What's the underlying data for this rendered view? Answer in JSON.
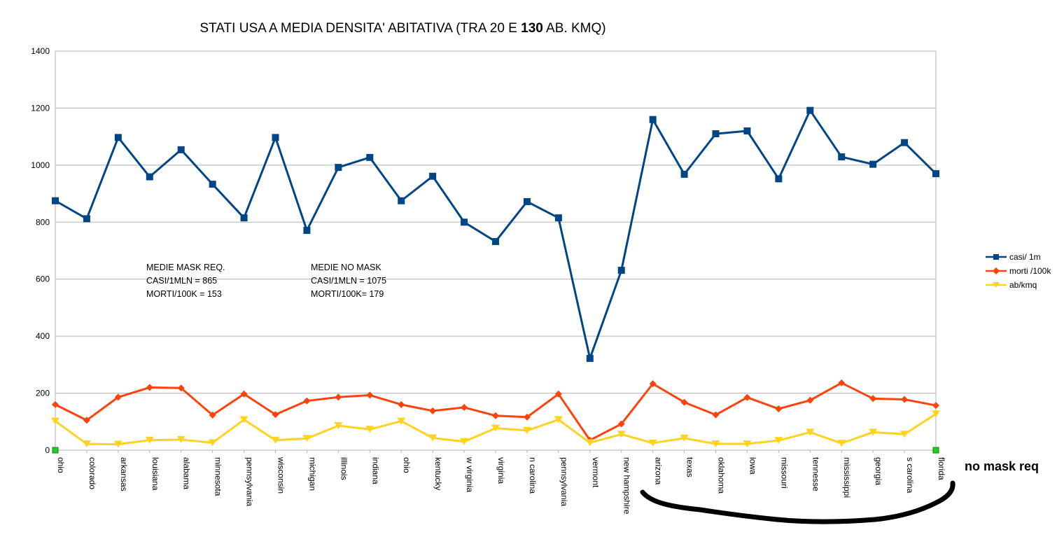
{
  "title": {
    "prefix": "STATI USA A MEDIA DENSITA' ABITATIVA (TRA 20 E ",
    "bold": "130",
    "suffix": " AB. KMQ)"
  },
  "annotations": {
    "mask_req": {
      "line1": "MEDIE MASK REQ.",
      "line2": "CASI/1MLN = 865",
      "line3": "MORTI/100K = 153"
    },
    "no_mask": {
      "line1": "MEDIE NO MASK",
      "line2": "CASI/1MLN = 1075",
      "line3": "MORTI/100K= 179"
    }
  },
  "note": "no mask req",
  "chart_data": {
    "type": "line",
    "ylim": [
      0,
      1400
    ],
    "yticks": [
      0,
      200,
      400,
      600,
      800,
      1000,
      1200,
      1400
    ],
    "grid": true,
    "legend_position": "right",
    "categories": [
      "ohio",
      "colorado",
      "arkansas",
      "louisiana",
      "alabama",
      "minnesota",
      "pennsylvania",
      "wisconsin",
      "michigan",
      "illinois",
      "indiana",
      "ohio",
      "kentucky",
      "w virginia",
      "virginia",
      "n carolina",
      "pennsylvania",
      "vermont",
      "new hampshire",
      "arizona",
      "texas",
      "oklahoma",
      "iowa",
      "missouri",
      "tennesse",
      "mississippi",
      "georgia",
      "s carolina",
      "florida"
    ],
    "series": [
      {
        "name": "casi/ 1m",
        "color": "#004586",
        "marker": "square",
        "values": [
          875,
          812,
          1097,
          959,
          1054,
          933,
          815,
          1097,
          771,
          992,
          1027,
          875,
          961,
          800,
          732,
          872,
          815,
          322,
          631,
          1160,
          968,
          1110,
          1120,
          952,
          1192,
          1029,
          1003,
          1079,
          970
        ]
      },
      {
        "name": "morti /100k",
        "color": "#ff420e",
        "marker": "diamond",
        "values": [
          160,
          105,
          186,
          220,
          218,
          123,
          197,
          125,
          173,
          186,
          193,
          160,
          138,
          150,
          121,
          116,
          197,
          35,
          92,
          233,
          168,
          124,
          185,
          145,
          175,
          236,
          181,
          178,
          157
        ]
      },
      {
        "name": "ab/kmq",
        "color": "#ffd320",
        "marker": "triangle-down",
        "values": [
          102,
          22,
          21,
          35,
          37,
          26,
          107,
          35,
          41,
          86,
          73,
          102,
          43,
          30,
          77,
          69,
          107,
          26,
          56,
          25,
          42,
          22,
          22,
          34,
          63,
          24,
          63,
          56,
          127
        ]
      }
    ]
  }
}
